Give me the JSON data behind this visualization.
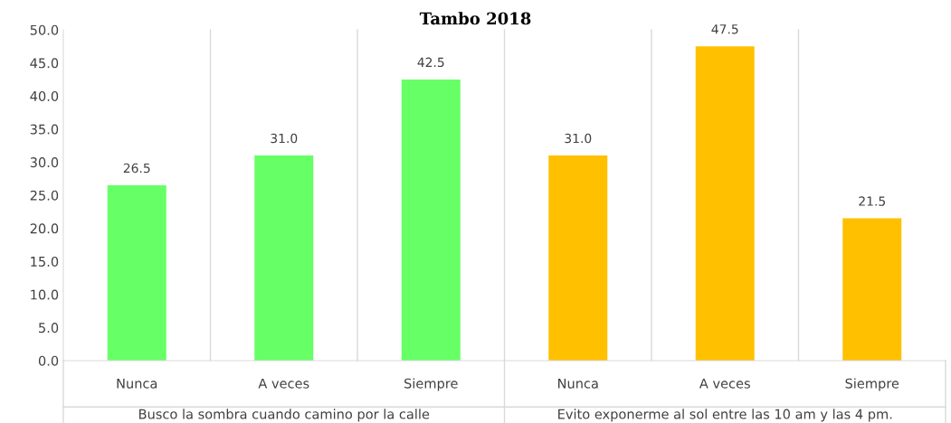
{
  "chart_data": {
    "type": "bar",
    "title": "Tambo 2018",
    "categories": [
      "Nunca",
      "A veces",
      "Siempre",
      "Nunca",
      "A veces",
      "Siempre"
    ],
    "values": [
      26.5,
      31.0,
      42.5,
      31.0,
      47.5,
      21.5
    ],
    "colors": [
      "#66ff66",
      "#66ff66",
      "#66ff66",
      "#ffc000",
      "#ffc000",
      "#ffc000"
    ],
    "value_labels": [
      "26.5",
      "31.0",
      "42.5",
      "31.0",
      "47.5",
      "21.5"
    ],
    "ylim": [
      0,
      50
    ],
    "yticks": [
      {
        "value": 0,
        "label": "0.0"
      },
      {
        "value": 5,
        "label": "5.0"
      },
      {
        "value": 10,
        "label": "10.0"
      },
      {
        "value": 15,
        "label": "15.0"
      },
      {
        "value": 20,
        "label": "20.0"
      },
      {
        "value": 25,
        "label": "25.0"
      },
      {
        "value": 30,
        "label": "30.0"
      },
      {
        "value": 35,
        "label": "35.0"
      },
      {
        "value": 40,
        "label": "40.0"
      },
      {
        "value": 45,
        "label": "45.0"
      },
      {
        "value": 50,
        "label": "50.0"
      }
    ],
    "annotations": [
      "Busco la sombra cuando camino por la calle",
      "Evito exponerme al sol entre las 10 am y las 4 pm."
    ],
    "grid": "x",
    "legend": false
  }
}
